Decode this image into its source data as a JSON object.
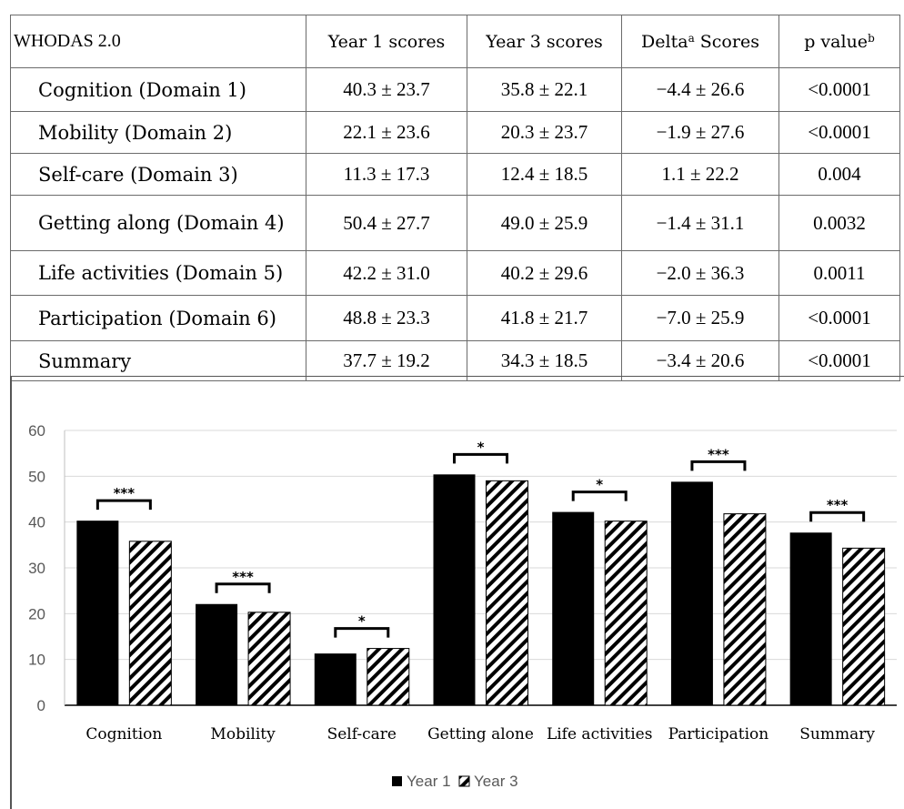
{
  "table": {
    "headers": [
      "WHODAS 2.0",
      "Year 1 scores",
      "Year 3 scores",
      "Delta",
      "Scores",
      "p value"
    ],
    "header_sup": {
      "delta": "a",
      "p": "b"
    },
    "rows": [
      {
        "label": "Cognition (Domain 1)",
        "y1": "40.3 ± 23.7",
        "y3": "35.8 ± 22.1",
        "delta": "−4.4 ± 26.6",
        "p": "<0.0001"
      },
      {
        "label": "Mobility (Domain 2)",
        "y1": "22.1 ± 23.6",
        "y3": "20.3 ± 23.7",
        "delta": "−1.9 ± 27.6",
        "p": "<0.0001"
      },
      {
        "label": "Self-care (Domain 3)",
        "y1": "11.3 ± 17.3",
        "y3": "12.4 ± 18.5",
        "delta": "1.1 ± 22.2",
        "p": "0.004"
      },
      {
        "label": "Getting along (Domain 4)",
        "y1": "50.4 ± 27.7",
        "y3": "49.0 ± 25.9",
        "delta": "−1.4 ± 31.1",
        "p": "0.0032"
      },
      {
        "label": "Life activities (Domain 5)",
        "y1": "42.2 ± 31.0",
        "y3": "40.2 ± 29.6",
        "delta": "−2.0 ± 36.3",
        "p": "0.0011"
      },
      {
        "label": "Participation (Domain 6)",
        "y1": "48.8 ± 23.3",
        "y3": "41.8 ± 21.7",
        "delta": "−7.0 ± 25.9",
        "p": "<0.0001"
      },
      {
        "label": "Summary",
        "y1": "37.7 ± 19.2",
        "y3": "34.3 ± 18.5",
        "delta": "−3.4 ± 20.6",
        "p": "<0.0001"
      }
    ]
  },
  "chart_data": {
    "type": "bar",
    "categories": [
      "Cognition",
      "Mobility",
      "Self-care",
      "Getting alone",
      "Life activities",
      "Participation",
      "Summary"
    ],
    "series": [
      {
        "name": "Year 1",
        "values": [
          40.3,
          22.1,
          11.3,
          50.4,
          42.2,
          48.8,
          37.7
        ],
        "fill": "solid",
        "color": "#000000"
      },
      {
        "name": "Year 3",
        "values": [
          35.8,
          20.3,
          12.4,
          49.0,
          40.2,
          41.8,
          34.3
        ],
        "fill": "diagonal-hatch",
        "color": "#000000"
      }
    ],
    "significance": [
      "***",
      "***",
      "*",
      "*",
      "*",
      "***",
      "***"
    ],
    "ylim": [
      0,
      60
    ],
    "yticks": [
      0,
      10,
      20,
      30,
      40,
      50,
      60
    ],
    "grid": true,
    "legend": "bottom-center",
    "title": "",
    "xlabel": "",
    "ylabel": ""
  }
}
